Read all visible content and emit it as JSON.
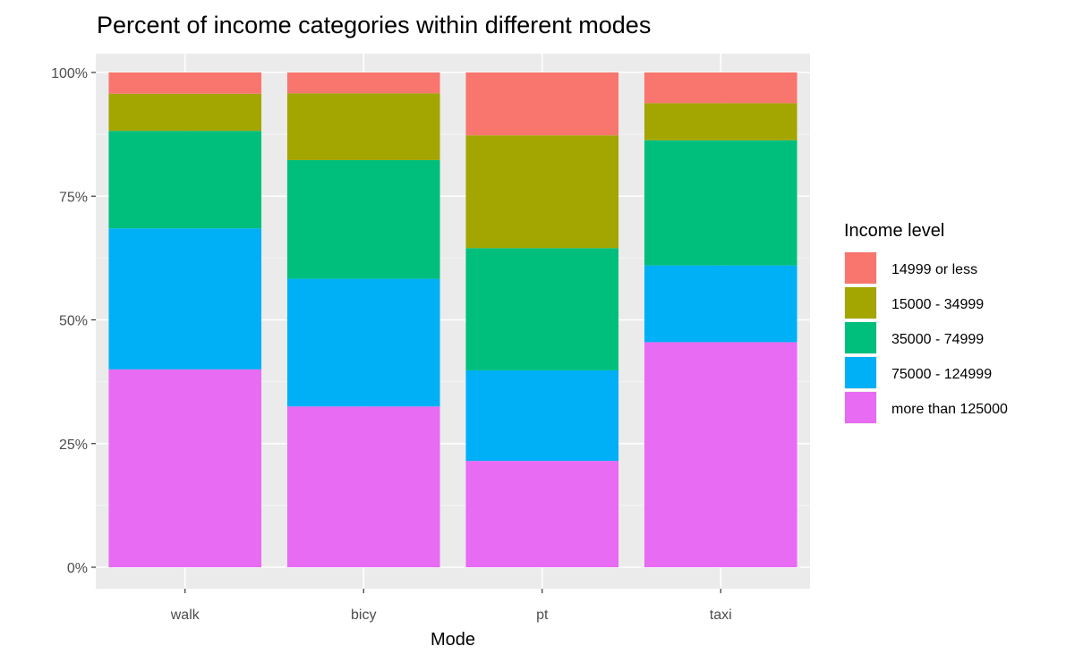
{
  "chart_data": {
    "type": "bar",
    "stacked": true,
    "title": "Percent of income categories within different modes",
    "xlabel": "Mode",
    "ylabel": "",
    "ylim": [
      0,
      1
    ],
    "y_ticks": [
      0,
      0.25,
      0.5,
      0.75,
      1.0
    ],
    "y_tick_labels": [
      "0%",
      "25%",
      "50%",
      "75%",
      "100%"
    ],
    "categories": [
      "walk",
      "bicy",
      "pt",
      "taxi"
    ],
    "legend_title": "Income level",
    "legend_position": "right",
    "grid": true,
    "panel_background": "#ebebeb",
    "series": [
      {
        "name": "more than 125000",
        "color": "#e76bf3",
        "values": [
          0.4,
          0.325,
          0.215,
          0.455
        ]
      },
      {
        "name": "75000 - 124999",
        "color": "#00b0f6",
        "values": [
          0.285,
          0.258,
          0.183,
          0.155
        ]
      },
      {
        "name": "35000 - 74999",
        "color": "#00bf7d",
        "values": [
          0.197,
          0.24,
          0.247,
          0.253
        ]
      },
      {
        "name": "15000 - 34999",
        "color": "#a3a500",
        "values": [
          0.075,
          0.135,
          0.228,
          0.075
        ]
      },
      {
        "name": "14999 or less",
        "color": "#f8766d",
        "values": [
          0.043,
          0.042,
          0.127,
          0.062
        ]
      }
    ],
    "legend_order": [
      "14999 or less",
      "15000 - 34999",
      "35000 - 74999",
      "75000 - 124999",
      "more than 125000"
    ]
  }
}
